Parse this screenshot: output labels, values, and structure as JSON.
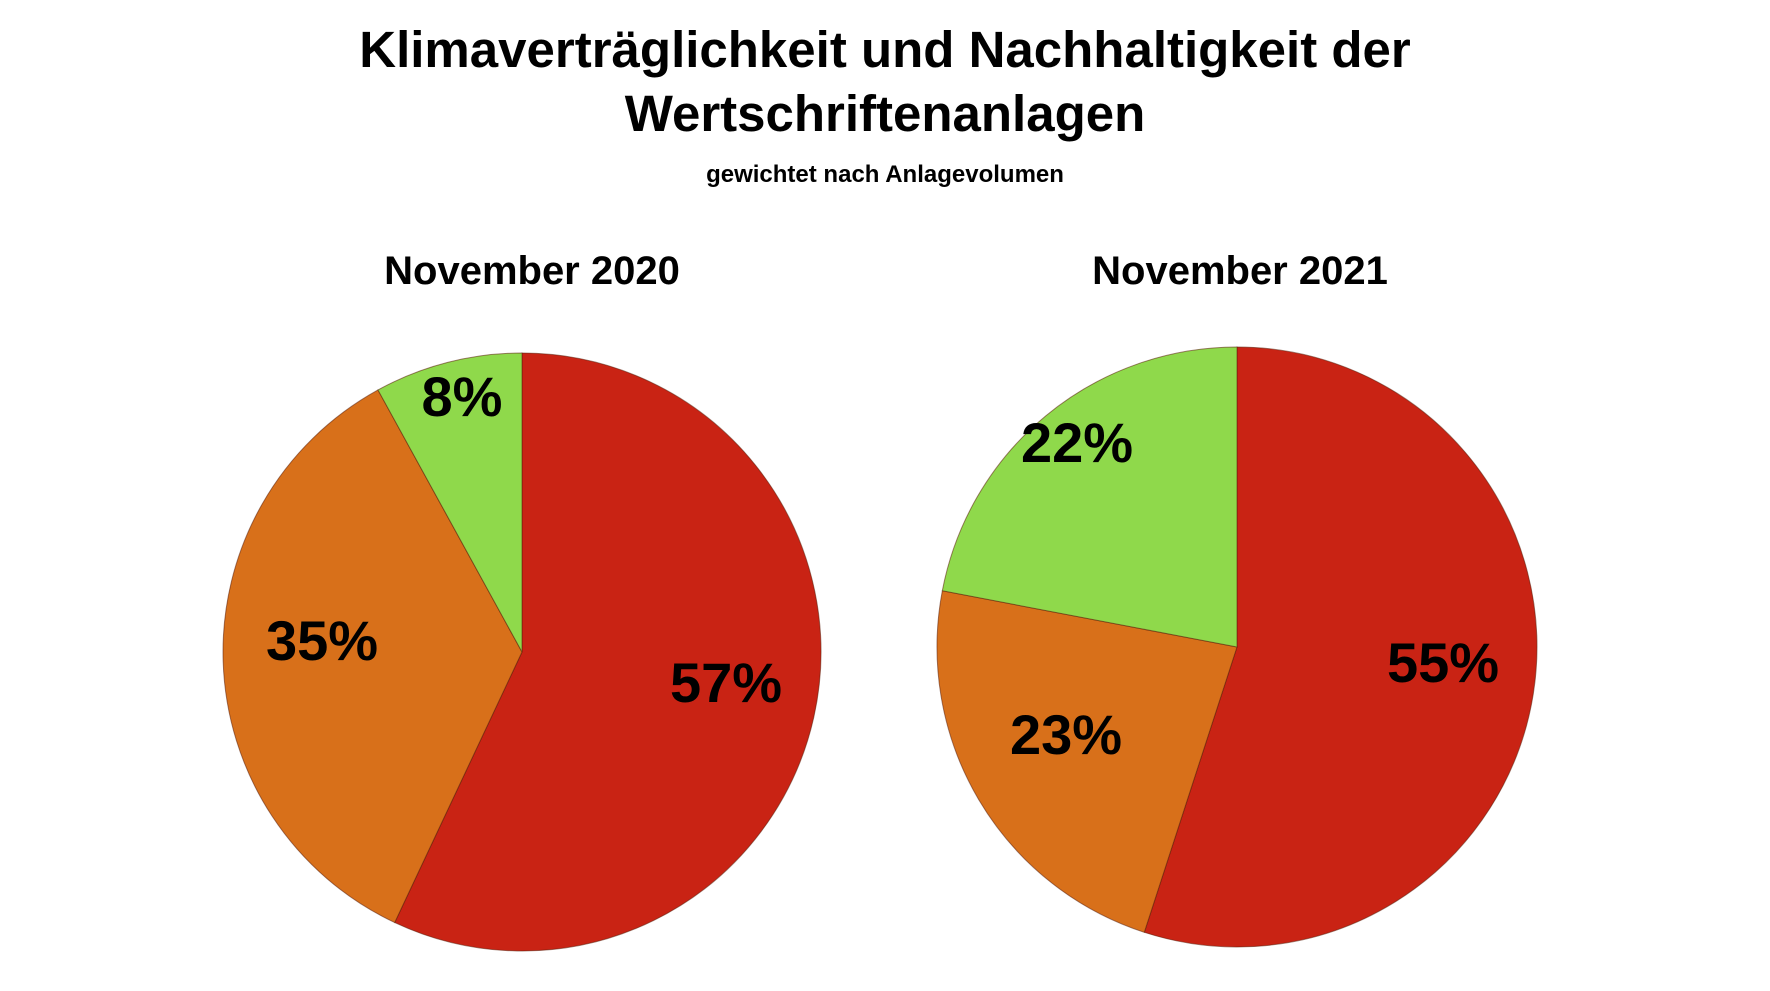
{
  "title_line1": "Klimaverträglichkeit und Nachhaltigkeit der",
  "title_line2": "Wertschriftenanlagen",
  "subtitle": "gewichtet nach Anlagevolumen",
  "colors": {
    "red": "#c92314",
    "orange": "#d8701a",
    "green": "#8fd94b"
  },
  "chart_data": [
    {
      "type": "pie",
      "title": "November 2020",
      "slices": [
        {
          "label": "57%",
          "value": 57,
          "color": "#c92314"
        },
        {
          "label": "35%",
          "value": 35,
          "color": "#d8701a"
        },
        {
          "label": "8%",
          "value": 8,
          "color": "#8fd94b"
        }
      ]
    },
    {
      "type": "pie",
      "title": "November 2021",
      "slices": [
        {
          "label": "55%",
          "value": 55,
          "color": "#c92314"
        },
        {
          "label": "23%",
          "value": 23,
          "color": "#d8701a"
        },
        {
          "label": "22%",
          "value": 22,
          "color": "#8fd94b"
        }
      ]
    }
  ]
}
